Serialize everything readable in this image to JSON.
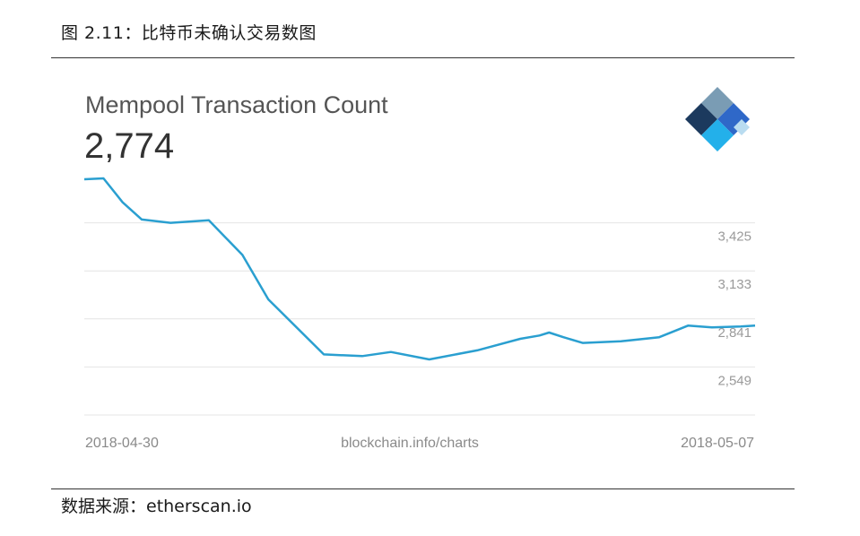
{
  "caption": "图 2.11：比特币未确认交易数图",
  "source": "数据来源：etherscan.io",
  "colors": {
    "line": "#2a9fd0",
    "grid": "#e4e4e4",
    "logo_dark": "#1c3a5e",
    "logo_grey": "#7a9cb4",
    "logo_blue": "#2f68c8",
    "logo_light": "#b9dcf0",
    "logo_cyan": "#23b0ea"
  },
  "chart_data": {
    "type": "line",
    "title": "Mempool Transaction Count",
    "current_value": "2,774",
    "x_start_label": "2018-04-30",
    "x_end_label": "2018-05-07",
    "watermark": "blockchain.info/charts",
    "yticks": [
      3425,
      3133,
      2841,
      2549
    ],
    "ytick_labels": [
      "3,425",
      "3,133",
      "2,841",
      "2,549"
    ],
    "ylim": [
      2257,
      3717
    ],
    "grid": true,
    "logo": "blockchain-logo-icon",
    "x": [
      0.0,
      0.2,
      0.4,
      0.6,
      0.9,
      1.3,
      1.65,
      1.92,
      2.5,
      2.9,
      3.2,
      3.6,
      4.1,
      4.55,
      4.75,
      4.85,
      5.0,
      5.2,
      5.6,
      6.0,
      6.3,
      6.55,
      6.85,
      7.0
    ],
    "values": [
      3690,
      3695,
      3550,
      3445,
      3425,
      3440,
      3230,
      2960,
      2625,
      2615,
      2640,
      2595,
      2650,
      2720,
      2740,
      2758,
      2730,
      2695,
      2705,
      2730,
      2800,
      2790,
      2795,
      2800
    ]
  }
}
